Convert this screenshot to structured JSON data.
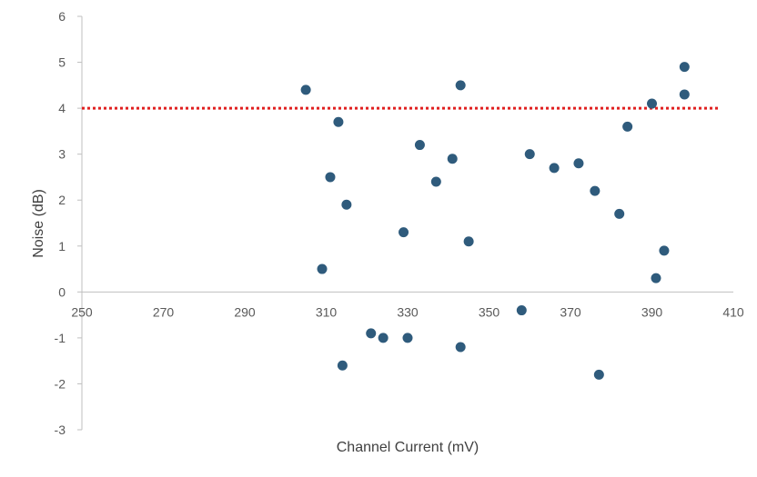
{
  "chart_data": {
    "type": "scatter",
    "xlabel": "Channel Current (mV)",
    "ylabel": "Noise (dB)",
    "xlim": [
      250,
      410
    ],
    "ylim": [
      -3,
      6
    ],
    "x_ticks": [
      250,
      270,
      290,
      310,
      330,
      350,
      370,
      390,
      410
    ],
    "y_ticks": [
      -3,
      -2,
      -1,
      0,
      1,
      2,
      3,
      4,
      5,
      6
    ],
    "x_tick_labels": [
      "250",
      "270",
      "290",
      "310",
      "330",
      "350",
      "370",
      "390",
      "410"
    ],
    "y_tick_labels": [
      "-3",
      "-2",
      "-1",
      "0",
      "1",
      "2",
      "3",
      "4",
      "5",
      "6"
    ],
    "grid": false,
    "legend": "none",
    "marker_color": "#2f5b7c",
    "threshold": {
      "y": 4,
      "color": "#e02020",
      "style": "dotted"
    },
    "points": [
      {
        "x": 305,
        "y": 4.4
      },
      {
        "x": 309,
        "y": 0.5
      },
      {
        "x": 311,
        "y": 2.5
      },
      {
        "x": 313,
        "y": 3.7
      },
      {
        "x": 314,
        "y": -1.6
      },
      {
        "x": 315,
        "y": 1.9
      },
      {
        "x": 321,
        "y": -0.9
      },
      {
        "x": 324,
        "y": -1.0
      },
      {
        "x": 329,
        "y": 1.3
      },
      {
        "x": 330,
        "y": -1.0
      },
      {
        "x": 333,
        "y": 3.2
      },
      {
        "x": 337,
        "y": 2.4
      },
      {
        "x": 341,
        "y": 2.9
      },
      {
        "x": 343,
        "y": 4.5
      },
      {
        "x": 343,
        "y": -1.2
      },
      {
        "x": 345,
        "y": 1.1
      },
      {
        "x": 358,
        "y": -0.4
      },
      {
        "x": 360,
        "y": 3.0
      },
      {
        "x": 366,
        "y": 2.7
      },
      {
        "x": 372,
        "y": 2.8
      },
      {
        "x": 376,
        "y": 2.2
      },
      {
        "x": 377,
        "y": -1.8
      },
      {
        "x": 382,
        "y": 1.7
      },
      {
        "x": 384,
        "y": 3.6
      },
      {
        "x": 390,
        "y": 4.1
      },
      {
        "x": 391,
        "y": 0.3
      },
      {
        "x": 393,
        "y": 0.9
      },
      {
        "x": 398,
        "y": 4.9
      },
      {
        "x": 398,
        "y": 4.3
      }
    ]
  }
}
